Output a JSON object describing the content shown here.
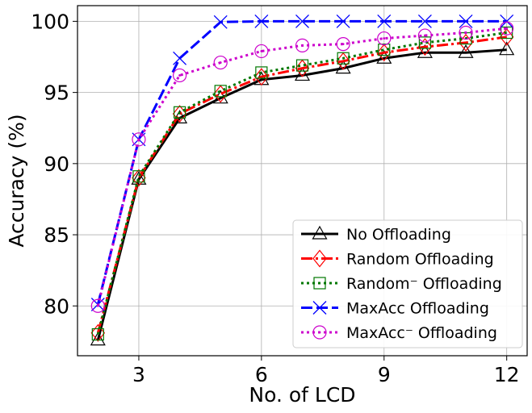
{
  "chart_data": {
    "type": "line",
    "title": "",
    "xlabel": "No. of LCD",
    "ylabel": "Accuracy (%)",
    "xlim": [
      1.5,
      12.5
    ],
    "ylim": [
      76.5,
      101.1
    ],
    "xticks": [
      3,
      6,
      9,
      12
    ],
    "yticks": [
      80,
      85,
      90,
      95,
      100
    ],
    "grid": true,
    "legend_position": "lower-right",
    "x": [
      2,
      3,
      4,
      5,
      6,
      7,
      8,
      9,
      10,
      11,
      12
    ],
    "series": [
      {
        "name": "No Offloading",
        "color": "#000000",
        "linestyle": "solid",
        "marker": "triangle",
        "values": [
          77.6,
          88.9,
          93.2,
          94.6,
          95.9,
          96.2,
          96.7,
          97.4,
          97.8,
          97.8,
          98.0
        ]
      },
      {
        "name": "Random Offloading",
        "color": "#ff0000",
        "linestyle": "dashdot",
        "marker": "diamond",
        "values": [
          78.1,
          89.0,
          93.5,
          94.9,
          96.1,
          96.7,
          97.2,
          97.8,
          98.2,
          98.5,
          98.9
        ]
      },
      {
        "name": "Random⁻ Offloading",
        "color": "#007700",
        "linestyle": "dotted",
        "marker": "square",
        "values": [
          78.0,
          89.1,
          93.6,
          95.1,
          96.4,
          96.9,
          97.4,
          98.0,
          98.5,
          98.8,
          99.2
        ]
      },
      {
        "name": "MaxAcc Offloading",
        "color": "#0000ff",
        "linestyle": "dashed",
        "marker": "x",
        "values": [
          80.1,
          91.7,
          97.4,
          99.95,
          100.0,
          100.0,
          100.0,
          100.0,
          100.0,
          100.0,
          100.0
        ]
      },
      {
        "name": "MaxAcc⁻ Offloading",
        "color": "#cc00cc",
        "linestyle": "dotted",
        "marker": "circle-dot",
        "values": [
          80.0,
          91.7,
          96.2,
          97.1,
          97.9,
          98.3,
          98.4,
          98.8,
          99.0,
          99.2,
          99.5
        ]
      }
    ]
  }
}
